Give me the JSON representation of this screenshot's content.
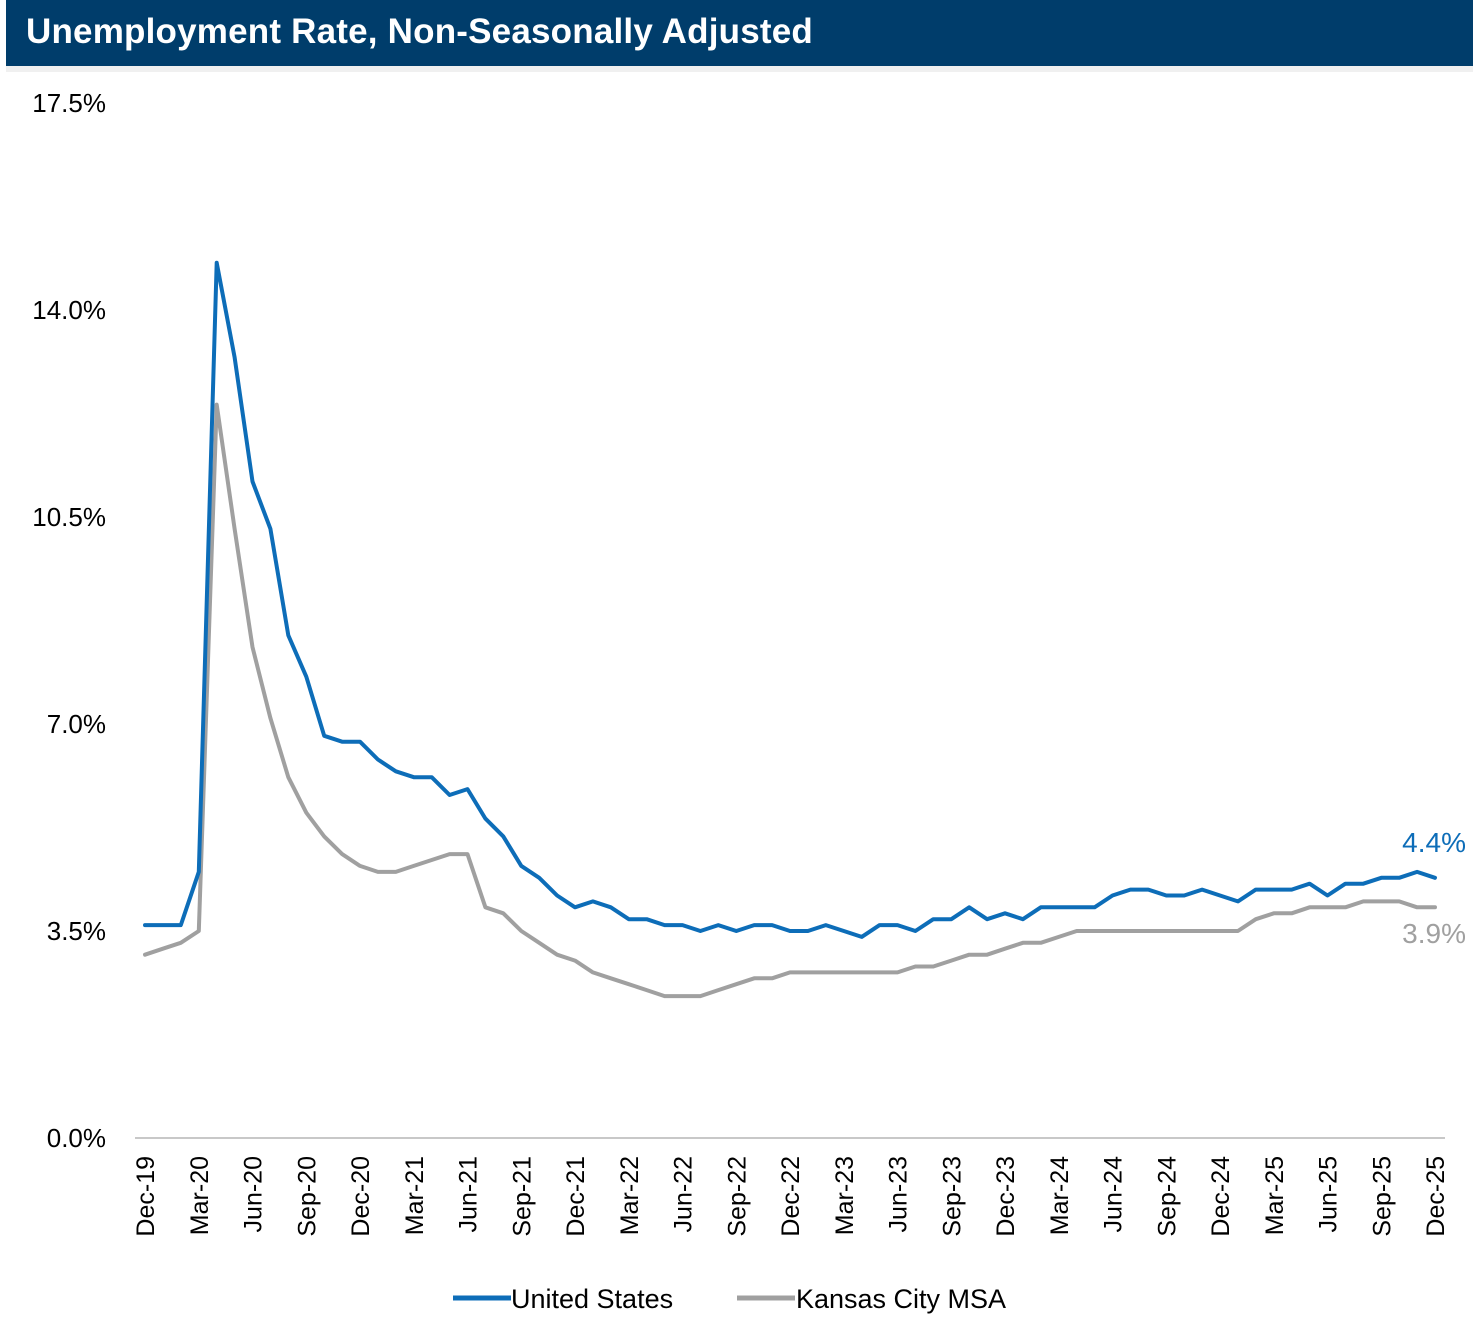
{
  "header": {
    "title": "Unemployment Rate, Non-Seasonally Adjusted"
  },
  "colors": {
    "header_bg": "#003d6b",
    "us_line": "#0d6db8",
    "kc_line": "#a0a0a0",
    "axis": "#c8c8c8"
  },
  "chart_data": {
    "type": "line",
    "title": "Unemployment Rate, Non-Seasonally Adjusted",
    "xlabel": "",
    "ylabel": "",
    "ylim": [
      0,
      17.5
    ],
    "yticks": [
      "0.0%",
      "3.5%",
      "7.0%",
      "10.5%",
      "14.0%",
      "17.5%"
    ],
    "ytick_values": [
      0,
      3.5,
      7.0,
      10.5,
      14.0,
      17.5
    ],
    "xticks": [
      "Dec-19",
      "Mar-20",
      "Jun-20",
      "Sep-20",
      "Dec-20",
      "Mar-21",
      "Jun-21",
      "Sep-21",
      "Dec-21",
      "Mar-22",
      "Jun-22",
      "Sep-22",
      "Dec-22",
      "Mar-23",
      "Jun-23",
      "Sep-23",
      "Dec-23",
      "Mar-24",
      "Jun-24",
      "Sep-24",
      "Dec-24",
      "Mar-25",
      "Jun-25",
      "Sep-25",
      "Dec-25"
    ],
    "x_start": "Dec-19",
    "x_end": "Dec-25",
    "grid": false,
    "legend_position": "bottom",
    "series": [
      {
        "name": "United States",
        "color": "#0d6db8",
        "end_label": "4.4%",
        "values": [
          3.6,
          3.6,
          3.6,
          4.5,
          14.8,
          13.2,
          11.1,
          10.3,
          8.5,
          7.8,
          6.8,
          6.7,
          6.7,
          6.4,
          6.2,
          6.1,
          6.1,
          5.8,
          5.9,
          5.4,
          5.1,
          4.6,
          4.4,
          4.1,
          3.9,
          4.0,
          3.9,
          3.7,
          3.7,
          3.6,
          3.6,
          3.5,
          3.6,
          3.5,
          3.6,
          3.6,
          3.5,
          3.5,
          3.6,
          3.5,
          3.4,
          3.6,
          3.6,
          3.5,
          3.7,
          3.7,
          3.9,
          3.7,
          3.8,
          3.7,
          3.9,
          3.9,
          3.9,
          3.9,
          4.1,
          4.2,
          4.2,
          4.1,
          4.1,
          4.2,
          4.1,
          4.0,
          4.2,
          4.2,
          4.2,
          4.3,
          4.1,
          4.3,
          4.3,
          4.4,
          4.4,
          4.5,
          4.4
        ]
      },
      {
        "name": "Kansas City MSA",
        "color": "#a0a0a0",
        "end_label": "3.9%",
        "values": [
          3.1,
          3.2,
          3.3,
          3.5,
          12.4,
          10.3,
          8.3,
          7.1,
          6.1,
          5.5,
          5.1,
          4.8,
          4.6,
          4.5,
          4.5,
          4.6,
          4.7,
          4.8,
          4.8,
          3.9,
          3.8,
          3.5,
          3.3,
          3.1,
          3.0,
          2.8,
          2.7,
          2.6,
          2.5,
          2.4,
          2.4,
          2.4,
          2.5,
          2.6,
          2.7,
          2.7,
          2.8,
          2.8,
          2.8,
          2.8,
          2.8,
          2.8,
          2.8,
          2.9,
          2.9,
          3.0,
          3.1,
          3.1,
          3.2,
          3.3,
          3.3,
          3.4,
          3.5,
          3.5,
          3.5,
          3.5,
          3.5,
          3.5,
          3.5,
          3.5,
          3.5,
          3.5,
          3.7,
          3.8,
          3.8,
          3.9,
          3.9,
          3.9,
          4.0,
          4.0,
          4.0,
          3.9,
          3.9
        ]
      }
    ]
  }
}
